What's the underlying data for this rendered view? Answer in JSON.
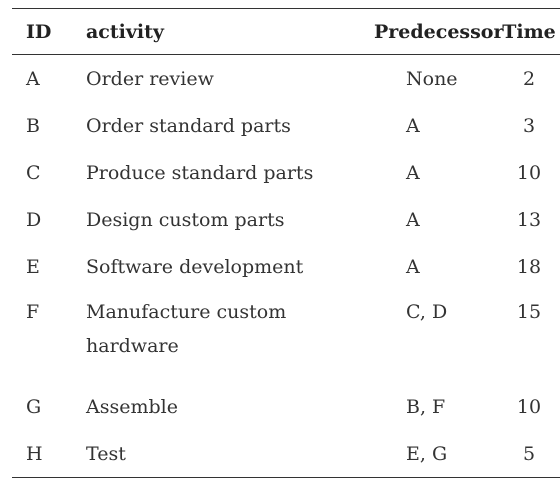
{
  "table": {
    "headers": {
      "id": "ID",
      "activity": "activity",
      "predecessor": "Predecessor",
      "time": "Time"
    },
    "rows": [
      {
        "id": "A",
        "activity": "Order review",
        "predecessor": "None",
        "time": "2"
      },
      {
        "id": "B",
        "activity": "Order standard parts",
        "predecessor": "A",
        "time": "3"
      },
      {
        "id": "C",
        "activity": "Produce standard parts",
        "predecessor": "A",
        "time": "10"
      },
      {
        "id": "D",
        "activity": "Design custom parts",
        "predecessor": "A",
        "time": "13"
      },
      {
        "id": "E",
        "activity": "Software development",
        "predecessor": "A",
        "time": "18"
      },
      {
        "id": "F",
        "activity": "Manufacture custom hardware",
        "predecessor": "C, D",
        "time": "15"
      },
      {
        "id": "G",
        "activity": "Assemble",
        "predecessor": "B, F",
        "time": "10"
      },
      {
        "id": "H",
        "activity": "Test",
        "predecessor": "E, G",
        "time": "5"
      }
    ]
  }
}
